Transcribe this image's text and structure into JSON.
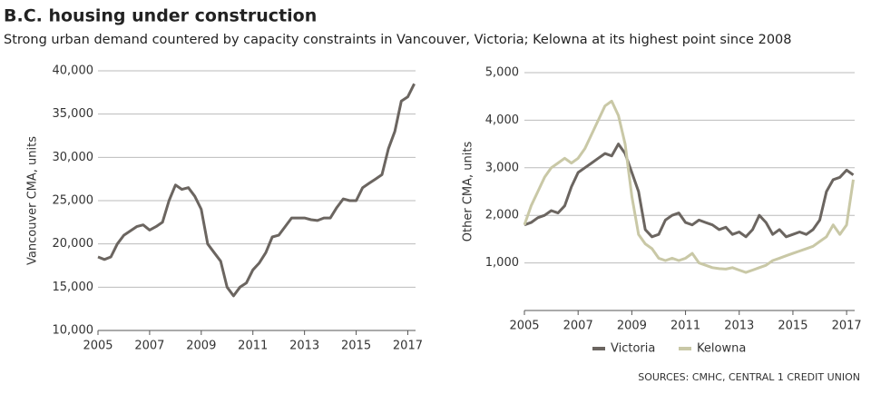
{
  "header": {
    "title": "B.C. housing under construction",
    "subtitle": "Strong urban demand countered by capacity constraints in Vancouver, Victoria; Kelowna at its highest point since 2008"
  },
  "source": "SOURCES: CMHC, CENTRAL 1 CREDIT UNION",
  "chart_data": [
    {
      "type": "line",
      "y_label": "Vancouver CMA, units",
      "x": [
        2005,
        2005.25,
        2005.5,
        2005.75,
        2006,
        2006.25,
        2006.5,
        2006.75,
        2007,
        2007.25,
        2007.5,
        2007.75,
        2008,
        2008.25,
        2008.5,
        2008.75,
        2009,
        2009.25,
        2009.5,
        2009.75,
        2010,
        2010.25,
        2010.5,
        2010.75,
        2011,
        2011.25,
        2011.5,
        2011.75,
        2012,
        2012.25,
        2012.5,
        2012.75,
        2013,
        2013.25,
        2013.5,
        2013.75,
        2014,
        2014.25,
        2014.5,
        2014.75,
        2015,
        2015.25,
        2015.5,
        2015.75,
        2016,
        2016.25,
        2016.5,
        2016.75,
        2017,
        2017.25
      ],
      "series": [
        {
          "color": "#6b6560",
          "values": [
            18500,
            18200,
            18500,
            20000,
            21000,
            21500,
            22000,
            22200,
            21600,
            22000,
            22500,
            25000,
            26800,
            26300,
            26500,
            25500,
            24000,
            20000,
            19000,
            18000,
            15000,
            14000,
            15000,
            15500,
            17000,
            17800,
            19000,
            20800,
            21000,
            22000,
            23000,
            23000,
            23000,
            22800,
            22700,
            23000,
            23000,
            24200,
            25200,
            25000,
            25000,
            26500,
            27000,
            27500,
            28000,
            31000,
            33000,
            36500,
            37000,
            38500
          ]
        }
      ],
      "xlim": [
        2005,
        2017.3
      ],
      "xticks": [
        2005,
        2007,
        2009,
        2011,
        2013,
        2015,
        2017
      ],
      "ylim": [
        10000,
        40000
      ],
      "yticks": [
        {
          "value": 10000,
          "label": "10,000"
        },
        {
          "value": 15000,
          "label": "15,000"
        },
        {
          "value": 20000,
          "label": "20,000"
        },
        {
          "value": 25000,
          "label": "25,000"
        },
        {
          "value": 30000,
          "label": "30,000"
        },
        {
          "value": 35000,
          "label": "35,000"
        },
        {
          "value": 40000,
          "label": "40,000"
        }
      ],
      "grid": true
    },
    {
      "type": "line",
      "y_label": "Other CMA, units",
      "x": [
        2005,
        2005.25,
        2005.5,
        2005.75,
        2006,
        2006.25,
        2006.5,
        2006.75,
        2007,
        2007.25,
        2007.5,
        2007.75,
        2008,
        2008.25,
        2008.5,
        2008.75,
        2009,
        2009.25,
        2009.5,
        2009.75,
        2010,
        2010.25,
        2010.5,
        2010.75,
        2011,
        2011.25,
        2011.5,
        2011.75,
        2012,
        2012.25,
        2012.5,
        2012.75,
        2013,
        2013.25,
        2013.5,
        2013.75,
        2014,
        2014.25,
        2014.5,
        2014.75,
        2015,
        2015.25,
        2015.5,
        2015.75,
        2016,
        2016.25,
        2016.5,
        2016.75,
        2017,
        2017.25
      ],
      "series": [
        {
          "name": "Victoria",
          "color": "#6b6560",
          "values": [
            1800,
            1850,
            1950,
            2000,
            2100,
            2050,
            2200,
            2600,
            2900,
            3000,
            3100,
            3200,
            3300,
            3250,
            3500,
            3300,
            2900,
            2500,
            1700,
            1550,
            1600,
            1900,
            2000,
            2050,
            1850,
            1800,
            1900,
            1850,
            1800,
            1700,
            1750,
            1600,
            1650,
            1550,
            1700,
            2000,
            1850,
            1600,
            1700,
            1550,
            1600,
            1650,
            1600,
            1700,
            1900,
            2500,
            2750,
            2800,
            2950,
            2850
          ]
        },
        {
          "name": "Kelowna",
          "color": "#c9c8a6",
          "values": [
            1800,
            2200,
            2500,
            2800,
            3000,
            3100,
            3200,
            3100,
            3200,
            3400,
            3700,
            4000,
            4300,
            4400,
            4100,
            3500,
            2400,
            1600,
            1400,
            1300,
            1100,
            1050,
            1100,
            1050,
            1100,
            1200,
            1000,
            950,
            900,
            880,
            870,
            900,
            850,
            800,
            850,
            900,
            950,
            1050,
            1100,
            1150,
            1200,
            1250,
            1300,
            1350,
            1450,
            1550,
            1800,
            1600,
            1800,
            2750
          ]
        }
      ],
      "xlim": [
        2005,
        2017.3
      ],
      "xticks": [
        2005,
        2007,
        2009,
        2011,
        2013,
        2015,
        2017
      ],
      "ylim": [
        0,
        5000
      ],
      "yticks": [
        {
          "value": 1000,
          "label": "1,000"
        },
        {
          "value": 2000,
          "label": "2,000"
        },
        {
          "value": 3000,
          "label": "3,000"
        },
        {
          "value": 4000,
          "label": "4,000"
        },
        {
          "value": 5000,
          "label": "5,000"
        }
      ],
      "grid": true,
      "legend": "bottom"
    }
  ]
}
